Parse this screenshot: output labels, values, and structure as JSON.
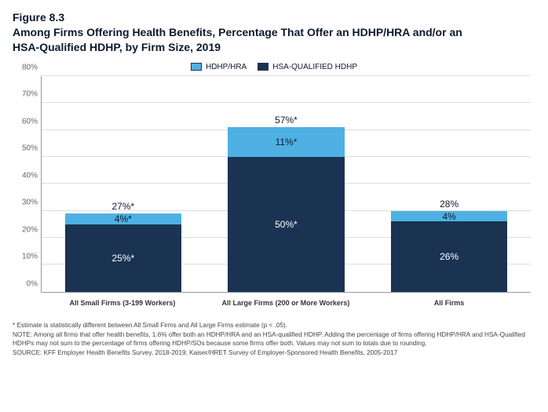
{
  "figure_number": "Figure 8.3",
  "title": "Among Firms Offering Health Benefits, Percentage That Offer an HDHP/HRA and/or an HSA-Qualified HDHP, by Firm Size, 2019",
  "legend": {
    "series1": {
      "label": "HDHP/HRA",
      "color": "#4fb0e3"
    },
    "series2": {
      "label": "HSA-QUALIFIED HDHP",
      "color": "#1a3353"
    }
  },
  "chart": {
    "type": "stacked-bar",
    "background_color": "#ffffff",
    "grid_color": "#dddddd",
    "axis_color": "#999999",
    "ylim": [
      0,
      80
    ],
    "ytick_step": 10,
    "yticks": [
      "0%",
      "10%",
      "20%",
      "30%",
      "40%",
      "50%",
      "60%",
      "70%",
      "80%"
    ],
    "bar_width_pct": 85,
    "top_segment_color": "#4fb0e3",
    "bottom_segment_color": "#1a3353",
    "top_label_color": "#0c1a2e",
    "bottom_label_color": "#ffffff",
    "label_fontsize": 12,
    "categories": [
      {
        "name": "All Small Firms (3-199 Workers)",
        "total_label": "27%*",
        "top_value": 4,
        "top_label": "4%*",
        "bottom_value": 25,
        "bottom_label": "25%*"
      },
      {
        "name": "All Large Firms (200 or More Workers)",
        "total_label": "57%*",
        "top_value": 11,
        "top_label": "11%*",
        "bottom_value": 50,
        "bottom_label": "50%*"
      },
      {
        "name": "All Firms",
        "total_label": "28%",
        "top_value": 4,
        "top_label": "4%",
        "bottom_value": 26,
        "bottom_label": "26%"
      }
    ]
  },
  "footnotes": {
    "f1": "* Estimate is statistically different between All Small Firms and All Large Firms estimate (p < .05).",
    "f2": "NOTE: Among all firms that offer health benefits, 1.6% offer both an HDHP/HRA and an HSA-qualified HDHP. Adding the percentage of firms offering HDHP/HRA and HSA-Qualified HDHPs may not sum to the percentage of firms offering HDHP/SOs because some firms offer both. Values may not sum to totals due to rounding.",
    "f3": "SOURCE: KFF Employer Health Benefits Survey, 2018-2019; Kaiser/HRET Survey of Employer-Sponsored Health Benefits, 2005-2017"
  }
}
